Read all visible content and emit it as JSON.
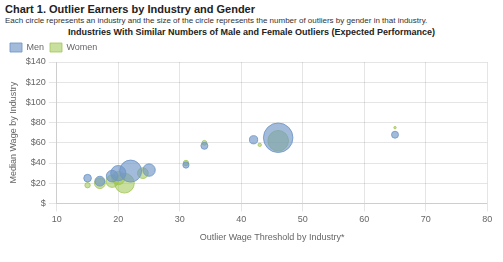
{
  "chart_data": {
    "type": "bubble",
    "title": "Chart 1. Outlier Earners by Industry and Gender",
    "subtitle": "Each circle represents an industry and the size of the circle represents the number of outliers by gender in that industry.",
    "chart_title": "Industries With Similar Numbers of  Male and Female Outliers (Expected Performance)",
    "xlabel": "Outlier Wage Threshold by Industry*",
    "ylabel": "Median Wage by Industry",
    "xlim": [
      10,
      80
    ],
    "ylim": [
      0,
      140
    ],
    "xticks": [
      10,
      20,
      30,
      40,
      50,
      60,
      70,
      80
    ],
    "yticks": [
      {
        "value": 0,
        "label": "$"
      },
      {
        "value": 20,
        "label": "$20"
      },
      {
        "value": 40,
        "label": "$40"
      },
      {
        "value": 60,
        "label": "$60"
      },
      {
        "value": 80,
        "label": "$80"
      },
      {
        "value": 100,
        "label": "$100"
      },
      {
        "value": 120,
        "label": "$120"
      },
      {
        "value": 140,
        "label": "$140"
      }
    ],
    "grid": true,
    "legend": "upper left",
    "series": [
      {
        "name": "Men",
        "color": "#7096c8",
        "x": [
          15,
          17,
          19,
          20,
          22,
          25,
          31,
          34,
          42,
          46,
          65
        ],
        "values": [
          25,
          22,
          27,
          30,
          32,
          33,
          38,
          57,
          63,
          65,
          68
        ],
        "sizes": [
          300,
          500,
          700,
          1200,
          2500,
          800,
          200,
          250,
          350,
          4500,
          250
        ]
      },
      {
        "name": "Women",
        "color": "#9dc44d",
        "x": [
          15,
          17,
          19,
          20,
          21,
          24,
          31,
          34,
          43,
          46,
          65
        ],
        "values": [
          18,
          20,
          22,
          25,
          20,
          30,
          40,
          60,
          58,
          62,
          75
        ],
        "sizes": [
          150,
          600,
          800,
          900,
          2000,
          600,
          150,
          120,
          60,
          2200,
          30
        ]
      }
    ]
  }
}
